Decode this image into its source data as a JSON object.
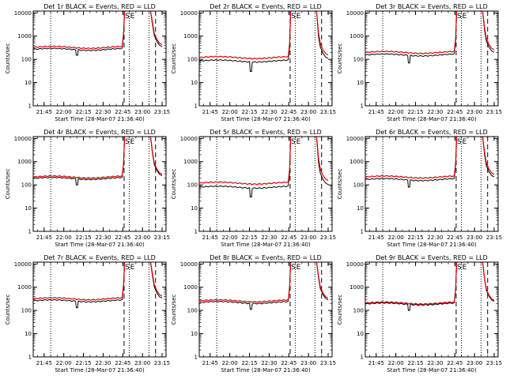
{
  "chart_data": [
    {
      "title": "Det 1r BLACK = Events, RED = LLD",
      "xlabel": "Start Time (28-Mar-07 21:36:40)",
      "ylabel": "Counts/sec",
      "black_level": 270,
      "red_level": 330,
      "dip_time": "22:10",
      "dip_value": 150
    },
    {
      "title": "Det 2r BLACK = Events, RED = LLD",
      "xlabel": "Start Time (28-Mar-07 21:36:40)",
      "ylabel": "Counts/sec",
      "black_level": 85,
      "red_level": 120,
      "dip_time": "22:16",
      "dip_value": 30
    },
    {
      "title": "Det 3r BLACK = Events, RED = LLD",
      "xlabel": "Start Time (28-Mar-07 21:36:40)",
      "ylabel": "Counts/sec",
      "black_level": 155,
      "red_level": 200,
      "dip_time": "22:10",
      "dip_value": 70
    },
    {
      "title": "Det 4r BLACK = Events, RED = LLD",
      "xlabel": "Start Time (28-Mar-07 21:36:40)",
      "ylabel": "Counts/sec",
      "black_level": 190,
      "red_level": 220,
      "dip_time": "22:10",
      "dip_value": 100
    },
    {
      "title": "Det 5r BLACK = Events, RED = LLD",
      "xlabel": "Start Time (28-Mar-07 21:36:40)",
      "ylabel": "Counts/sec",
      "black_level": 80,
      "red_level": 120,
      "dip_time": "22:16",
      "dip_value": 30
    },
    {
      "title": "Det 6r BLACK = Events, RED = LLD",
      "xlabel": "Start Time (28-Mar-07 21:36:40)",
      "ylabel": "Counts/sec",
      "black_level": 170,
      "red_level": 220,
      "dip_time": "22:10",
      "dip_value": 80
    },
    {
      "title": "Det 7r BLACK = Events, RED = LLD",
      "xlabel": "Start Time (28-Mar-07 21:36:40)",
      "ylabel": "Counts/sec",
      "black_level": 260,
      "red_level": 320,
      "dip_time": "22:10",
      "dip_value": 130
    },
    {
      "title": "Det 8r BLACK = Events, RED = LLD",
      "xlabel": "Start Time (28-Mar-07 21:36:40)",
      "ylabel": "Counts/sec",
      "black_level": 220,
      "red_level": 260,
      "dip_time": "22:16",
      "dip_value": 110
    },
    {
      "title": "Det 9r BLACK = Events, RED = LLD",
      "xlabel": "Start Time (28-Mar-07 21:36:40)",
      "ylabel": "Counts/sec",
      "black_level": 190,
      "red_level": 210,
      "dip_time": "22:10",
      "dip_value": 100
    }
  ],
  "shared": {
    "type": "line",
    "yscale": "log",
    "ylim": [
      1,
      12000
    ],
    "yticks": [
      "1",
      "10",
      "100",
      "1000",
      "10000"
    ],
    "xlim": [
      "21:36:40",
      "23:18:00"
    ],
    "xticks": [
      "21:45",
      "22:00",
      "22:15",
      "22:30",
      "22:45",
      "23:00",
      "23:15"
    ],
    "dotted_lines": [
      "21:50",
      "22:50",
      "23:05"
    ],
    "dashed_lines": [
      "22:46",
      "23:10"
    ],
    "markers": [
      {
        "label": "S",
        "time": "22:46"
      },
      {
        "label": "E",
        "time": "22:50"
      }
    ],
    "colors": {
      "events": "#000000",
      "lld": "#dd0000"
    }
  }
}
